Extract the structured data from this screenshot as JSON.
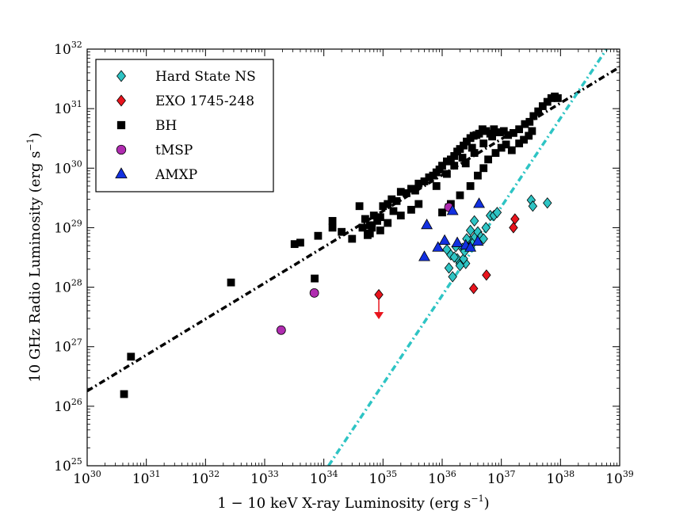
{
  "chart_data": {
    "type": "scatter",
    "xscale": "log",
    "yscale": "log",
    "xlim": [
      1e+30,
      1e+39
    ],
    "ylim": [
      1e+25,
      1e+32
    ],
    "xlabel": {
      "main": "1 − 10 keV X-ray Luminosity (erg s",
      "sup": "−1",
      "close": ")"
    },
    "ylabel": {
      "main": "10 GHz Radio Luminosity (erg s",
      "sup": "−1",
      "close": ")"
    },
    "xticks": [
      {
        "base": "10",
        "exp": "30",
        "value": 1e+30
      },
      {
        "base": "10",
        "exp": "31",
        "value": 1e+31
      },
      {
        "base": "10",
        "exp": "32",
        "value": 1e+32
      },
      {
        "base": "10",
        "exp": "33",
        "value": 1e+33
      },
      {
        "base": "10",
        "exp": "34",
        "value": 1e+34
      },
      {
        "base": "10",
        "exp": "35",
        "value": 1e+35
      },
      {
        "base": "10",
        "exp": "36",
        "value": 1e+36
      },
      {
        "base": "10",
        "exp": "37",
        "value": 1e+37
      },
      {
        "base": "10",
        "exp": "38",
        "value": 1e+38
      },
      {
        "base": "10",
        "exp": "39",
        "value": 1e+39
      }
    ],
    "yticks": [
      {
        "base": "10",
        "exp": "25",
        "value": 1e+25
      },
      {
        "base": "10",
        "exp": "26",
        "value": 1e+26
      },
      {
        "base": "10",
        "exp": "27",
        "value": 1e+27
      },
      {
        "base": "10",
        "exp": "28",
        "value": 1e+28
      },
      {
        "base": "10",
        "exp": "29",
        "value": 1e+29
      },
      {
        "base": "10",
        "exp": "30",
        "value": 1e+30
      },
      {
        "base": "10",
        "exp": "31",
        "value": 1e+31
      },
      {
        "base": "10",
        "exp": "32",
        "value": 1e+32
      }
    ],
    "grid": false,
    "legend_position": "top-left",
    "fit_lines": [
      {
        "style": "dash-dot",
        "color": "#000000",
        "points": [
          [
            1e+30,
            1.8e+26
          ],
          [
            1e+39,
            5e+31
          ]
        ]
      },
      {
        "style": "dash-dot",
        "color": "#2ec4c4",
        "points": [
          [
            1.2e+34,
            1e+25
          ],
          [
            6e+38,
            1e+32
          ]
        ]
      }
    ],
    "series": [
      {
        "name": "Hard State NS",
        "marker": "diamond",
        "color": "#2ec4c4",
        "x": [
          1.3e+36,
          1.5e+36,
          1.8e+36,
          2e+36,
          2.2e+36,
          2.5e+36,
          2.8e+36,
          3e+36,
          3.3e+36,
          3.6e+36,
          4e+36,
          4.5e+36,
          5e+36,
          5.5e+36,
          6.5e+36,
          7.5e+36,
          8.5e+36,
          1.2e+36,
          1.4e+36,
          1.7e+36,
          2.3e+36,
          2.6e+36,
          3e+36,
          3.5e+36,
          2e+36,
          2.4e+36,
          1.6e+36,
          3.2e+37,
          3.4e+37,
          6e+37
        ],
        "y": [
          2.1e+28,
          1.5e+28,
          3e+28,
          2.5e+28,
          4.5e+28,
          2.5e+28,
          5e+28,
          6e+28,
          5.5e+28,
          7e+28,
          8.5e+28,
          7e+28,
          6.5e+28,
          1e+29,
          1.6e+29,
          1.6e+29,
          1.8e+29,
          4.3e+28,
          3.5e+28,
          4.8e+28,
          3e+28,
          6.5e+28,
          9e+28,
          1.3e+29,
          2.3e+28,
          4e+28,
          3.2e+28,
          2.9e+29,
          2.3e+29,
          2.6e+29
        ]
      },
      {
        "name": "EXO 1745-248",
        "marker": "diamond",
        "color": "#e8141d",
        "x": [
          3.4e+36,
          5.6e+36,
          1.6e+37,
          1.7e+37,
          8.5e+34
        ],
        "y": [
          9.5e+27,
          1.6e+28,
          1e+29,
          1.4e+29,
          7.5e+27
        ],
        "upper_limit_x": 8.5e+34
      },
      {
        "name": "BH",
        "marker": "square",
        "color": "#000000",
        "x": [
          4.2e+30,
          5.5e+30,
          2.7e+32,
          7e+33,
          3.2e+33,
          4e+33,
          8e+33,
          1.4e+34,
          1.4e+34,
          2e+34,
          3e+34,
          4e+34,
          4.5e+34,
          5e+34,
          5.5e+34,
          6e+34,
          6.5e+34,
          7e+34,
          8e+34,
          9e+34,
          1e+35,
          1.2e+35,
          1.4e+35,
          1.7e+35,
          2e+35,
          2.5e+35,
          3e+35,
          3.5e+35,
          4e+35,
          5e+35,
          6e+35,
          7e+35,
          8e+35,
          9e+35,
          1e+36,
          1.2e+36,
          1.4e+36,
          1.6e+36,
          1.8e+36,
          2e+36,
          2.3e+36,
          2.6e+36,
          3e+36,
          3.4e+36,
          3.8e+36,
          4.2e+36,
          4.8e+36,
          5.5e+36,
          6.5e+36,
          7.5e+36,
          9e+36,
          1.1e+37,
          1.3e+37,
          1.6e+37,
          2e+37,
          2.5e+37,
          3e+37,
          3.5e+37,
          4.2e+37,
          5e+37,
          6e+37,
          7e+37,
          8e+37,
          9e+37,
          1.4e+36,
          2e+36,
          3e+36,
          4e+36,
          5e+36,
          6e+36,
          8e+36,
          1e+37,
          1.2e+37,
          1.5e+37,
          2e+37,
          2.4e+37,
          2.9e+37,
          3.3e+37,
          2.5e+36,
          3.5e+36,
          5e+36,
          7e+36,
          9.5e+36,
          1.2e+36,
          1.6e+36,
          2.2e+36,
          3.2e+36,
          1e+36,
          1.3e+36,
          8e+35,
          4e+35,
          3e+35,
          2e+35,
          1.5e+35,
          1.2e+35,
          9e+34,
          6e+34
        ],
        "y": [
          1.6e+26,
          6.8e+26,
          1.2e+28,
          1.4e+28,
          5.3e+28,
          5.6e+28,
          7.3e+28,
          1.3e+29,
          1e+29,
          8.5e+28,
          6.5e+28,
          2.3e+29,
          1e+29,
          1.4e+29,
          7.5e+28,
          8e+28,
          1e+29,
          1.6e+29,
          1.3e+29,
          1.5e+29,
          2.3e+29,
          2.5e+29,
          3e+29,
          2.8e+29,
          4e+29,
          3.8e+29,
          4.5e+29,
          4.2e+29,
          5.5e+29,
          6e+29,
          7e+29,
          7.5e+29,
          8.5e+29,
          9.5e+29,
          1.1e+30,
          1.3e+30,
          1.4e+30,
          1.6e+30,
          1.9e+30,
          2.1e+30,
          2.4e+30,
          2.8e+30,
          3.2e+30,
          3.5e+30,
          3.6e+30,
          3.8e+30,
          4.5e+30,
          4.2e+30,
          3.8e+30,
          4.5e+30,
          4e+30,
          4.2e+30,
          3.6e+30,
          3.9e+30,
          4.5e+30,
          5.5e+30,
          6e+30,
          7.5e+30,
          9e+30,
          1.1e+31,
          1.3e+31,
          1.5e+31,
          1.6e+31,
          1.5e+31,
          2.5e+29,
          3.5e+29,
          5e+29,
          7.5e+29,
          1e+30,
          1.4e+30,
          1.8e+30,
          2.2e+30,
          2.5e+30,
          2e+30,
          2.6e+30,
          3e+30,
          3.5e+30,
          4.2e+30,
          1.2e+30,
          1.8e+30,
          2.6e+30,
          3.4e+30,
          4e+30,
          8e+29,
          1.1e+30,
          1.5e+30,
          2.2e+30,
          1.8e+29,
          2.2e+29,
          5e+29,
          2.5e+29,
          2e+29,
          1.6e+29,
          1.9e+29,
          1.2e+29,
          9e+28,
          1.1e+29
        ]
      },
      {
        "name": "tMSP",
        "marker": "circle",
        "color": "#b02cb0",
        "x": [
          1.9e+33,
          6.9e+33,
          1.3e+36
        ],
        "y": [
          1.9e+27,
          8e+27,
          2.2e+29
        ]
      },
      {
        "name": "AMXP",
        "marker": "triangle",
        "color": "#1230e0",
        "x": [
          5e+35,
          5.5e+35,
          8.5e+35,
          1.1e+36,
          1.5e+36,
          1.8e+36,
          2.5e+36,
          3e+36,
          4e+36,
          4.2e+36
        ],
        "y": [
          3.2e+28,
          1.1e+29,
          4.6e+28,
          6e+28,
          1.9e+29,
          5.5e+28,
          5e+28,
          4.6e+28,
          5.8e+28,
          2.5e+29
        ]
      }
    ]
  }
}
